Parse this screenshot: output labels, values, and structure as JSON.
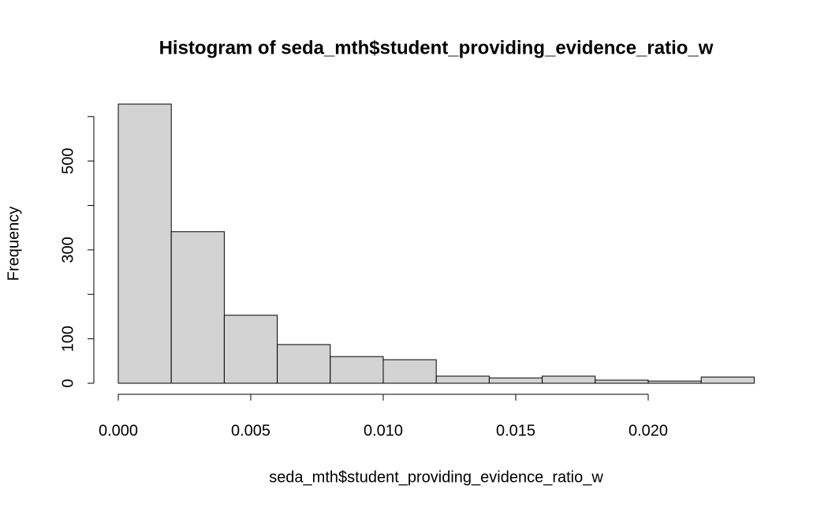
{
  "chart_data": {
    "type": "histogram",
    "title": "Histogram of seda_mth$student_providing_evidence_ratio_w",
    "x_label": "seda_mth$student_providing_evidence_ratio_w",
    "y_label": "Frequency",
    "bins": [
      0,
      0.002,
      0.004,
      0.006,
      0.008,
      0.01,
      0.012,
      0.014,
      0.016,
      0.018,
      0.02,
      0.022,
      0.024
    ],
    "values": [
      628,
      341,
      153,
      87,
      60,
      53,
      16,
      12,
      16,
      7,
      5,
      14
    ],
    "color": "#d3d3d3",
    "xlim": [
      0,
      0.024
    ],
    "xticks": [
      {
        "value": 0,
        "label": "0.000"
      },
      0.005,
      {
        "value": 0.01,
        "label": "0.010"
      },
      0.015,
      {
        "value": 0.02,
        "label": "0.020"
      }
    ],
    "ylim": [
      0,
      628
    ],
    "yticks": [
      0,
      100,
      {
        "value": 200,
        "label": null
      },
      300,
      {
        "value": 400,
        "label": null
      },
      500,
      {
        "value": 600,
        "label": null
      }
    ],
    "grid": false
  }
}
